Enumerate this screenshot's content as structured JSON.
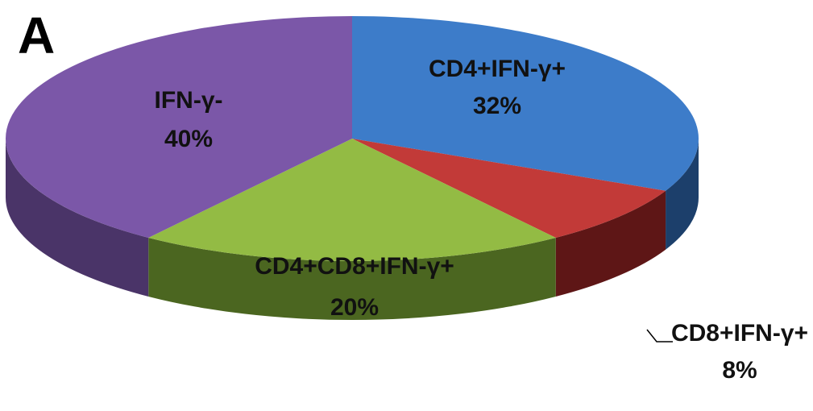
{
  "panel_letter": "A",
  "chart_data": {
    "type": "pie",
    "style": "3d",
    "slices": [
      {
        "label": "CD4+IFN-γ+",
        "value": 32,
        "value_label": "32%",
        "color": "#3d7cc9",
        "side_color": "#1c3f6b"
      },
      {
        "label": "CD8+IFN-γ+",
        "value": 8,
        "value_label": "8%",
        "color": "#c23a38",
        "side_color": "#5e1616"
      },
      {
        "label": "CD4+CD8+IFN-γ+",
        "value": 20,
        "value_label": "20%",
        "color": "#93bb44",
        "side_color": "#4b6620"
      },
      {
        "label": "IFN-γ-",
        "value": 40,
        "value_label": "40%",
        "color": "#7b57a8",
        "side_color": "#4a3468"
      }
    ]
  }
}
